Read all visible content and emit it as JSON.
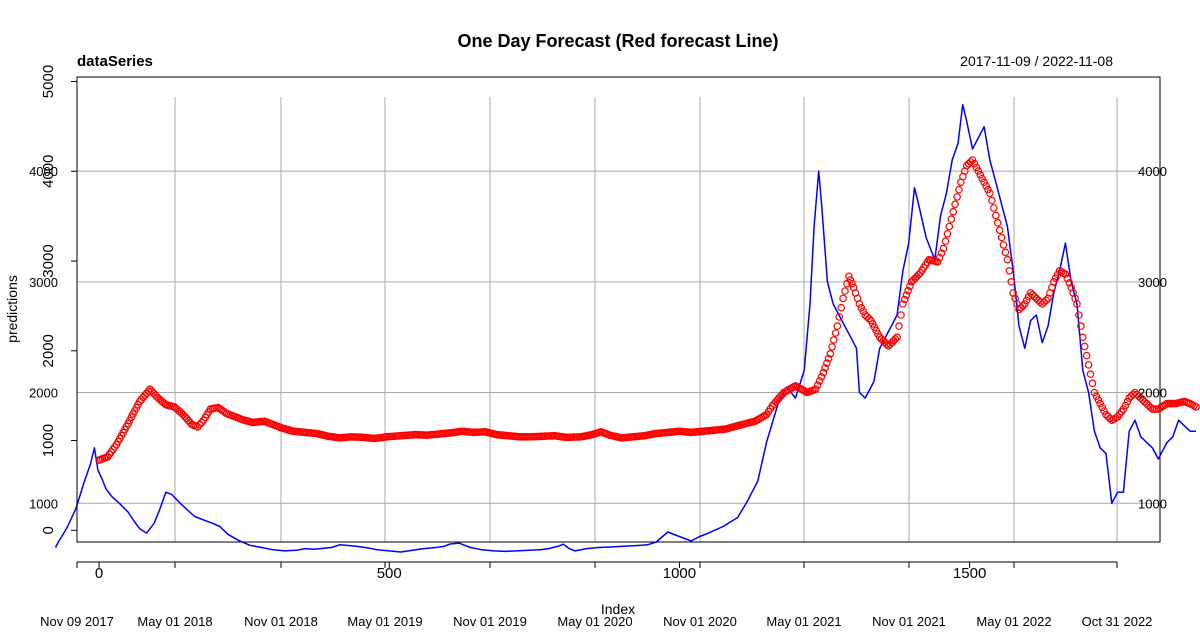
{
  "chart_data": {
    "type": "line",
    "title": "One Day Forecast (Red forecast Line)",
    "series_label": "dataSeries",
    "date_range": "2017-11-09 / 2022-11-08",
    "xlabel": "Index",
    "ylabel": "predictions",
    "grid": true,
    "x_date_ticks": [
      "Nov 09 2017",
      "May 01 2018",
      "Nov 01 2018",
      "May 01 2019",
      "Nov 01 2019",
      "May 01 2020",
      "Nov 01 2020",
      "May 01 2021",
      "Nov 01 2021",
      "May 01 2022",
      "Oct 31 2022"
    ],
    "x_index_ticks": [
      "0",
      "500",
      "1000",
      "1500"
    ],
    "x_index_tick_values": [
      0,
      500,
      1000,
      1500
    ],
    "x_index_range": [
      -38,
      1828
    ],
    "left_outer_ticks": [
      "0",
      "1000",
      "2000",
      "3000",
      "4000",
      "5000"
    ],
    "left_outer_tick_values": [
      0,
      1000,
      2000,
      3000,
      4000,
      5000
    ],
    "left_outer_range": [
      -130,
      5050
    ],
    "left_inner_ticks": [
      "1000",
      "2000",
      "3000",
      "4000"
    ],
    "right_ticks": [
      "1000",
      "2000",
      "3000",
      "4000"
    ],
    "right_tick_values": [
      1000,
      2000,
      3000,
      4000
    ],
    "y_range": [
      650,
      4850
    ],
    "colors": {
      "actual": "#0000ff",
      "forecast": "#ff0000",
      "grid": "#a9a9a9"
    },
    "series": [
      {
        "name": "actual",
        "style": "line",
        "points": [
          [
            -75,
            600
          ],
          [
            -70,
            650
          ],
          [
            -55,
            780
          ],
          [
            -40,
            950
          ],
          [
            -25,
            1200
          ],
          [
            -15,
            1350
          ],
          [
            -8,
            1500
          ],
          [
            -2,
            1300
          ],
          [
            5,
            1220
          ],
          [
            12,
            1130
          ],
          [
            22,
            1060
          ],
          [
            35,
            1000
          ],
          [
            50,
            920
          ],
          [
            60,
            840
          ],
          [
            70,
            770
          ],
          [
            82,
            730
          ],
          [
            95,
            820
          ],
          [
            105,
            950
          ],
          [
            115,
            1100
          ],
          [
            125,
            1080
          ],
          [
            140,
            1000
          ],
          [
            150,
            950
          ],
          [
            165,
            880
          ],
          [
            180,
            850
          ],
          [
            195,
            820
          ],
          [
            208,
            790
          ],
          [
            222,
            720
          ],
          [
            240,
            665
          ],
          [
            260,
            620
          ],
          [
            280,
            600
          ],
          [
            300,
            580
          ],
          [
            320,
            570
          ],
          [
            340,
            575
          ],
          [
            355,
            590
          ],
          [
            370,
            585
          ],
          [
            400,
            600
          ],
          [
            415,
            625
          ],
          [
            425,
            620
          ],
          [
            445,
            610
          ],
          [
            465,
            595
          ],
          [
            480,
            580
          ],
          [
            500,
            570
          ],
          [
            520,
            560
          ],
          [
            540,
            575
          ],
          [
            560,
            590
          ],
          [
            580,
            600
          ],
          [
            595,
            612
          ],
          [
            605,
            632
          ],
          [
            620,
            640
          ],
          [
            640,
            600
          ],
          [
            660,
            580
          ],
          [
            680,
            570
          ],
          [
            700,
            565
          ],
          [
            720,
            570
          ],
          [
            740,
            575
          ],
          [
            760,
            580
          ],
          [
            775,
            590
          ],
          [
            790,
            610
          ],
          [
            800,
            630
          ],
          [
            810,
            590
          ],
          [
            820,
            570
          ],
          [
            840,
            590
          ],
          [
            860,
            600
          ],
          [
            880,
            605
          ],
          [
            900,
            610
          ],
          [
            915,
            615
          ],
          [
            935,
            620
          ],
          [
            945,
            625
          ],
          [
            960,
            650
          ],
          [
            980,
            740
          ],
          [
            1000,
            700
          ],
          [
            1020,
            660
          ],
          [
            1035,
            700
          ],
          [
            1050,
            730
          ],
          [
            1075,
            790
          ],
          [
            1100,
            870
          ],
          [
            1115,
            1000
          ],
          [
            1135,
            1200
          ],
          [
            1150,
            1550
          ],
          [
            1170,
            1900
          ],
          [
            1185,
            2050
          ],
          [
            1200,
            1950
          ],
          [
            1215,
            2200
          ],
          [
            1225,
            2800
          ],
          [
            1232,
            3500
          ],
          [
            1240,
            4000
          ],
          [
            1245,
            3700
          ],
          [
            1255,
            3000
          ],
          [
            1265,
            2800
          ],
          [
            1280,
            2650
          ],
          [
            1295,
            2500
          ],
          [
            1305,
            2400
          ],
          [
            1310,
            2000
          ],
          [
            1320,
            1950
          ],
          [
            1335,
            2100
          ],
          [
            1345,
            2400
          ],
          [
            1360,
            2550
          ],
          [
            1375,
            2700
          ],
          [
            1385,
            3100
          ],
          [
            1395,
            3350
          ],
          [
            1405,
            3850
          ],
          [
            1412,
            3700
          ],
          [
            1425,
            3400
          ],
          [
            1440,
            3200
          ],
          [
            1450,
            3600
          ],
          [
            1460,
            3800
          ],
          [
            1470,
            4100
          ],
          [
            1480,
            4250
          ],
          [
            1488,
            4600
          ],
          [
            1495,
            4450
          ],
          [
            1505,
            4200
          ],
          [
            1515,
            4300
          ],
          [
            1525,
            4400
          ],
          [
            1535,
            4100
          ],
          [
            1545,
            3900
          ],
          [
            1555,
            3700
          ],
          [
            1565,
            3500
          ],
          [
            1575,
            3100
          ],
          [
            1585,
            2600
          ],
          [
            1595,
            2400
          ],
          [
            1605,
            2650
          ],
          [
            1615,
            2700
          ],
          [
            1625,
            2450
          ],
          [
            1635,
            2600
          ],
          [
            1645,
            2900
          ],
          [
            1655,
            3100
          ],
          [
            1665,
            3350
          ],
          [
            1675,
            3000
          ],
          [
            1685,
            2800
          ],
          [
            1695,
            2200
          ],
          [
            1705,
            2000
          ],
          [
            1715,
            1650
          ],
          [
            1725,
            1500
          ],
          [
            1735,
            1450
          ],
          [
            1745,
            1000
          ],
          [
            1755,
            1100
          ],
          [
            1765,
            1100
          ],
          [
            1775,
            1650
          ],
          [
            1785,
            1750
          ],
          [
            1795,
            1600
          ],
          [
            1805,
            1550
          ],
          [
            1815,
            1500
          ],
          [
            1825,
            1400
          ],
          [
            1840,
            1550
          ],
          [
            1850,
            1600
          ],
          [
            1860,
            1750
          ],
          [
            1870,
            1700
          ],
          [
            1880,
            1650
          ],
          [
            1890,
            1650
          ]
        ]
      },
      {
        "name": "forecast",
        "style": "circles",
        "points": [
          [
            0,
            1390
          ],
          [
            15,
            1420
          ],
          [
            30,
            1530
          ],
          [
            50,
            1720
          ],
          [
            70,
            1920
          ],
          [
            88,
            2030
          ],
          [
            100,
            1960
          ],
          [
            115,
            1890
          ],
          [
            130,
            1870
          ],
          [
            145,
            1800
          ],
          [
            160,
            1710
          ],
          [
            170,
            1690
          ],
          [
            180,
            1750
          ],
          [
            192,
            1850
          ],
          [
            205,
            1865
          ],
          [
            220,
            1810
          ],
          [
            235,
            1780
          ],
          [
            250,
            1750
          ],
          [
            265,
            1730
          ],
          [
            285,
            1740
          ],
          [
            300,
            1710
          ],
          [
            315,
            1680
          ],
          [
            335,
            1650
          ],
          [
            355,
            1640
          ],
          [
            375,
            1630
          ],
          [
            395,
            1605
          ],
          [
            415,
            1590
          ],
          [
            435,
            1600
          ],
          [
            455,
            1595
          ],
          [
            475,
            1585
          ],
          [
            495,
            1600
          ],
          [
            520,
            1610
          ],
          [
            545,
            1620
          ],
          [
            565,
            1615
          ],
          [
            585,
            1625
          ],
          [
            605,
            1635
          ],
          [
            625,
            1650
          ],
          [
            645,
            1640
          ],
          [
            665,
            1645
          ],
          [
            685,
            1620
          ],
          [
            705,
            1610
          ],
          [
            725,
            1600
          ],
          [
            745,
            1600
          ],
          [
            765,
            1605
          ],
          [
            785,
            1610
          ],
          [
            805,
            1595
          ],
          [
            830,
            1600
          ],
          [
            850,
            1620
          ],
          [
            865,
            1645
          ],
          [
            880,
            1615
          ],
          [
            900,
            1590
          ],
          [
            920,
            1600
          ],
          [
            940,
            1610
          ],
          [
            960,
            1630
          ],
          [
            980,
            1640
          ],
          [
            1000,
            1650
          ],
          [
            1020,
            1640
          ],
          [
            1040,
            1650
          ],
          [
            1060,
            1660
          ],
          [
            1080,
            1670
          ],
          [
            1100,
            1700
          ],
          [
            1115,
            1720
          ],
          [
            1130,
            1740
          ],
          [
            1150,
            1800
          ],
          [
            1160,
            1880
          ],
          [
            1180,
            2000
          ],
          [
            1200,
            2060
          ],
          [
            1220,
            2000
          ],
          [
            1235,
            2030
          ],
          [
            1248,
            2180
          ],
          [
            1260,
            2350
          ],
          [
            1272,
            2600
          ],
          [
            1282,
            2850
          ],
          [
            1292,
            3050
          ],
          [
            1300,
            2950
          ],
          [
            1310,
            2800
          ],
          [
            1320,
            2700
          ],
          [
            1330,
            2650
          ],
          [
            1345,
            2500
          ],
          [
            1360,
            2420
          ],
          [
            1375,
            2500
          ],
          [
            1385,
            2800
          ],
          [
            1400,
            3000
          ],
          [
            1415,
            3080
          ],
          [
            1430,
            3200
          ],
          [
            1445,
            3180
          ],
          [
            1455,
            3300
          ],
          [
            1465,
            3500
          ],
          [
            1475,
            3700
          ],
          [
            1485,
            3900
          ],
          [
            1495,
            4050
          ],
          [
            1505,
            4100
          ],
          [
            1515,
            4000
          ],
          [
            1525,
            3900
          ],
          [
            1535,
            3800
          ],
          [
            1545,
            3600
          ],
          [
            1555,
            3400
          ],
          [
            1565,
            3200
          ],
          [
            1575,
            2900
          ],
          [
            1585,
            2750
          ],
          [
            1595,
            2800
          ],
          [
            1605,
            2900
          ],
          [
            1615,
            2850
          ],
          [
            1625,
            2800
          ],
          [
            1635,
            2850
          ],
          [
            1645,
            3000
          ],
          [
            1655,
            3100
          ],
          [
            1665,
            3070
          ],
          [
            1675,
            2950
          ],
          [
            1685,
            2800
          ],
          [
            1695,
            2500
          ],
          [
            1705,
            2250
          ],
          [
            1715,
            2000
          ],
          [
            1725,
            1900
          ],
          [
            1735,
            1800
          ],
          [
            1745,
            1750
          ],
          [
            1755,
            1780
          ],
          [
            1765,
            1850
          ],
          [
            1775,
            1950
          ],
          [
            1785,
            2000
          ],
          [
            1795,
            1950
          ],
          [
            1805,
            1900
          ],
          [
            1815,
            1850
          ],
          [
            1825,
            1850
          ],
          [
            1840,
            1900
          ],
          [
            1855,
            1900
          ],
          [
            1870,
            1920
          ],
          [
            1880,
            1900
          ],
          [
            1890,
            1870
          ]
        ]
      }
    ]
  }
}
